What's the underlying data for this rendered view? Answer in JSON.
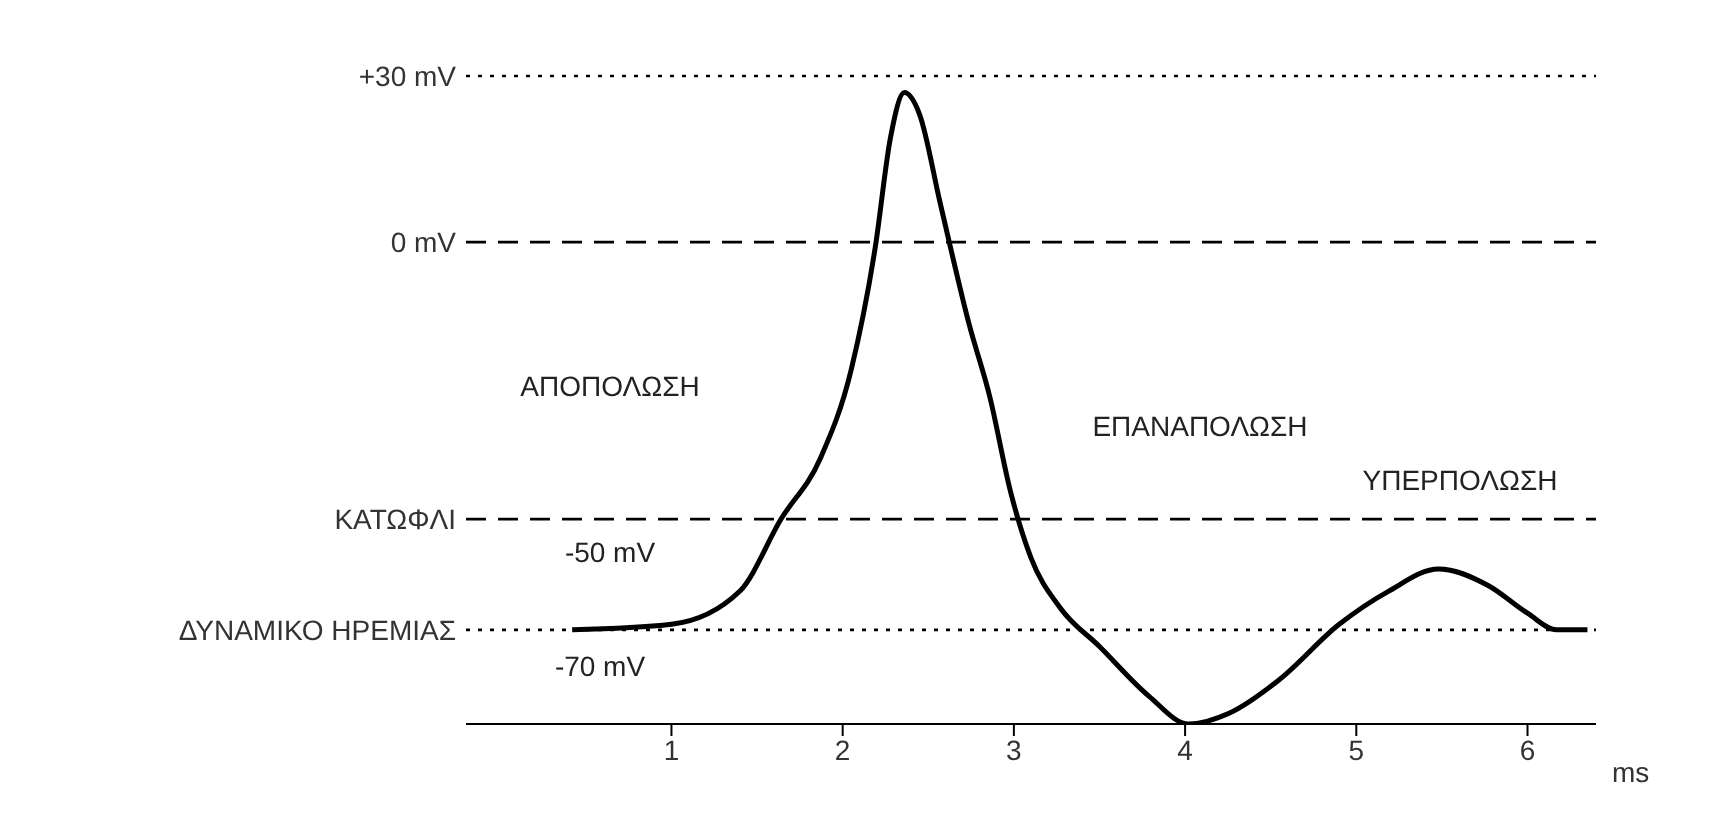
{
  "chart_data": {
    "type": "line",
    "xlabel": "ms",
    "x": [
      0.42,
      1.0,
      1.4,
      1.64,
      1.87,
      2.05,
      2.19,
      2.28,
      2.36,
      2.45,
      2.57,
      2.74,
      2.86,
      2.98,
      3.1,
      3.27,
      3.5,
      3.79,
      4.02,
      4.26,
      4.55,
      4.9,
      5.19,
      5.48,
      5.77,
      6.0,
      6.17,
      6.35
    ],
    "series": [
      {
        "color": "#000000",
        "values": [
          -70,
          -69,
          -63,
          -50,
          -39,
          -23,
          -1,
          19,
          27,
          23,
          7,
          -15,
          -28,
          -45,
          -57,
          -66,
          -73,
          -82,
          -87,
          -85,
          -79,
          -69,
          -63,
          -59,
          -62,
          -67,
          -70,
          -70
        ]
      }
    ],
    "xlim": [
      -0.2,
      6.4
    ],
    "xticks": [
      1,
      2,
      3,
      4,
      5,
      6
    ],
    "ylim": [
      -87,
      30
    ],
    "tick_labels": "x",
    "ref_lines": [
      {
        "axis": "y",
        "value": 30,
        "label": "+30 mV",
        "line_style": "dotted",
        "color": "#000000"
      },
      {
        "axis": "y",
        "value": 0,
        "label": "0 mV",
        "line_style": "dashed",
        "color": "#000000"
      },
      {
        "axis": "y",
        "value": -50,
        "label": "ΚΑΤΩΦΛΙ",
        "line_style": "dashed",
        "color": "#000000"
      },
      {
        "axis": "y",
        "value": -70,
        "label": "ΔΥΝΑΜΙΚΟ ΗΡΕΜΙΑΣ",
        "line_style": "dotted",
        "color": "#000000"
      }
    ],
    "annotations": [
      "ΑΠΟΠΟΛΩΣΗ",
      "ΕΠΑΝΑΠΟΛΩΣΗ",
      "ΥΠΕΡΠΟΛΩΣΗ",
      "-50 mV",
      "-70 mV"
    ]
  }
}
